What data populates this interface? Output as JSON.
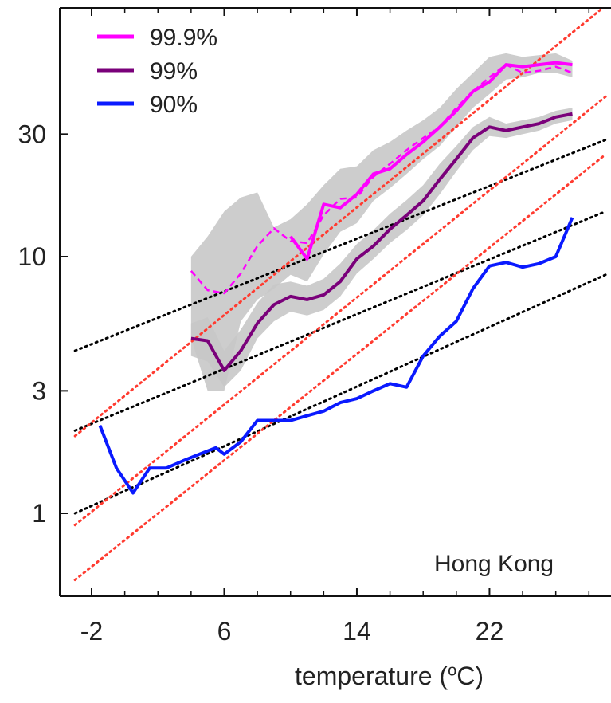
{
  "chart_data": {
    "type": "line",
    "scale_y": "log",
    "xlim": [
      -3,
      29
    ],
    "ylim": [
      0.6,
      60
    ],
    "x_ticks": [
      -2,
      6,
      14,
      22
    ],
    "y_ticks": [
      1,
      3,
      10,
      30
    ],
    "x_tick_labels": [
      "-2",
      "6",
      "14",
      "22"
    ],
    "y_tick_labels": [
      "1",
      "3",
      "10",
      "30"
    ],
    "xlabel_parts": {
      "pre": "temperature (",
      "sup": "o",
      "post": "C)"
    },
    "annotation": "Hong Kong",
    "legend": {
      "position": "top-left",
      "entries": [
        "99.9%",
        "99%",
        "90%"
      ]
    },
    "series": [
      {
        "name": "99.9%",
        "color": "#ff00ff",
        "style": "solid",
        "x": [
          10,
          11,
          12,
          13,
          14,
          15,
          16,
          17,
          18,
          19,
          20,
          21,
          22,
          23,
          24,
          25,
          26,
          27
        ],
        "y": [
          12,
          9.8,
          16,
          15.5,
          17.5,
          21,
          22,
          25,
          28,
          32,
          37,
          44,
          48,
          56,
          55,
          56,
          57,
          56
        ]
      },
      {
        "name": "99.9% (dashed)",
        "color": "#ff00ff",
        "style": "dashed",
        "x": [
          4,
          5,
          6,
          7,
          8,
          9,
          10,
          11,
          12,
          13,
          14,
          15,
          16,
          17,
          18,
          19,
          20,
          21,
          22,
          23,
          24,
          25,
          26,
          27
        ],
        "y": [
          8.8,
          7.4,
          7.2,
          8.6,
          11,
          12.9,
          11.5,
          11.3,
          14.5,
          16.8,
          17,
          20.5,
          23,
          26,
          29,
          32,
          38,
          44,
          50,
          56,
          52,
          53,
          55,
          52
        ]
      },
      {
        "name": "99%",
        "color": "#7a007a",
        "style": "solid",
        "x": [
          4,
          5,
          6,
          7,
          8,
          9,
          10,
          11,
          12,
          13,
          14,
          15,
          16,
          17,
          18,
          19,
          20,
          21,
          22,
          23,
          24,
          25,
          26,
          27
        ],
        "y": [
          4.8,
          4.7,
          3.6,
          4.3,
          5.5,
          6.5,
          7,
          6.8,
          7.1,
          8,
          9.8,
          11,
          12.8,
          14.5,
          16.5,
          20,
          24,
          29,
          32,
          31,
          32,
          33,
          35,
          36
        ]
      },
      {
        "name": "90%",
        "color": "#0a1aff",
        "style": "solid",
        "x": [
          -1.5,
          -0.5,
          0.5,
          1.5,
          2.5,
          3.5,
          4.5,
          5.5,
          6,
          7,
          8,
          9,
          10,
          11,
          12,
          13,
          14,
          15,
          16,
          17,
          18,
          19,
          20,
          21,
          22,
          23,
          24,
          25,
          26,
          27
        ],
        "y": [
          2.2,
          1.5,
          1.2,
          1.5,
          1.5,
          1.6,
          1.7,
          1.8,
          1.7,
          1.9,
          2.3,
          2.3,
          2.3,
          2.4,
          2.5,
          2.7,
          2.8,
          3,
          3.2,
          3.1,
          4.1,
          4.9,
          5.6,
          7.5,
          9.2,
          9.5,
          9.1,
          9.4,
          10,
          14.2
        ]
      }
    ],
    "confidence_band_99_9": {
      "x": [
        4,
        5,
        6,
        7,
        8,
        9,
        10,
        11,
        12,
        13,
        14,
        15,
        16,
        17,
        18,
        19,
        20,
        21,
        22,
        23,
        24,
        25,
        26,
        27
      ],
      "upper": [
        10,
        12,
        15,
        17,
        17.8,
        13,
        14,
        16,
        19,
        22,
        22.5,
        26,
        28,
        31,
        34,
        38,
        45,
        52,
        60,
        62,
        60,
        61,
        62,
        58
      ],
      "lower": [
        4.8,
        3,
        3,
        5.6,
        6.8,
        7.5,
        8.5,
        8,
        10.2,
        12.5,
        13.5,
        16.5,
        18.5,
        21,
        24,
        27,
        32,
        38,
        43,
        49,
        50,
        52,
        52,
        50
      ]
    },
    "confidence_band_99": {
      "x": [
        4,
        5,
        6,
        7,
        8,
        9,
        10,
        11,
        12,
        13,
        14,
        15,
        16,
        17,
        18,
        19,
        20,
        21,
        22,
        23,
        24,
        25,
        26,
        27
      ],
      "upper": [
        5.5,
        5.8,
        4.3,
        5.2,
        6.6,
        7.8,
        8,
        7.7,
        8.2,
        9.4,
        11.2,
        12.7,
        14.7,
        16.6,
        19,
        23,
        27,
        32,
        35,
        33,
        34,
        35,
        37,
        38
      ],
      "lower": [
        4.1,
        3.9,
        3.1,
        3.6,
        4.8,
        5.6,
        6.1,
        5.9,
        6.2,
        7,
        8.6,
        9.8,
        11.3,
        12.7,
        14.5,
        17.5,
        21.5,
        26,
        29.5,
        29,
        30,
        31,
        33,
        34
      ]
    },
    "reference_lines": [
      {
        "color": "#000000",
        "style": "dotted",
        "x": [
          -3,
          29
        ],
        "y": [
          4.3,
          28.5
        ]
      },
      {
        "color": "#000000",
        "style": "dotted",
        "x": [
          -3,
          29
        ],
        "y": [
          2.1,
          15
        ]
      },
      {
        "color": "#000000",
        "style": "dotted",
        "x": [
          -3,
          29
        ],
        "y": [
          1.0,
          8.5
        ]
      },
      {
        "color": "#ff3b30",
        "style": "dotted",
        "x": [
          -3,
          29
        ],
        "y": [
          2.0,
          95
        ]
      },
      {
        "color": "#ff3b30",
        "style": "dotted",
        "x": [
          -3,
          29
        ],
        "y": [
          0.9,
          42
        ]
      },
      {
        "color": "#ff3b30",
        "style": "dotted",
        "x": [
          -3,
          29
        ],
        "y": [
          0.55,
          25
        ]
      }
    ]
  }
}
